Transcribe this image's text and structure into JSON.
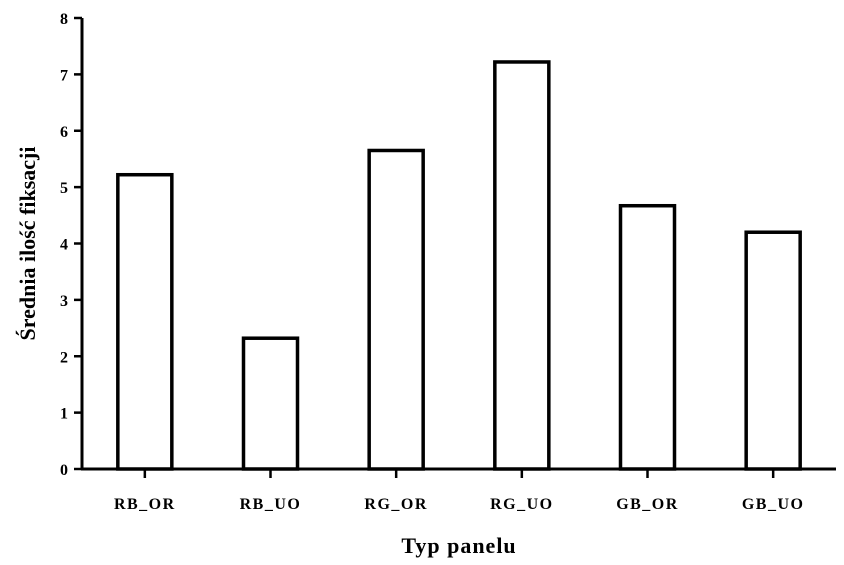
{
  "chart_data": {
    "type": "bar",
    "title": "",
    "xlabel": "Typ panelu",
    "ylabel": "Średnia ilość fiksacji",
    "categories": [
      "RB_OR",
      "RB_UO",
      "RG_OR",
      "RG_UO",
      "GB_OR",
      "GB_UO"
    ],
    "values": [
      5.22,
      2.32,
      5.65,
      7.22,
      4.67,
      4.2
    ],
    "ylim": [
      0,
      8
    ],
    "yticks": [
      "0",
      "1",
      "2",
      "3",
      "4",
      "5",
      "6",
      "7",
      "8"
    ],
    "grid": false,
    "legend": "none",
    "bar_fill": "#ffffff",
    "bar_stroke": "#000000"
  }
}
